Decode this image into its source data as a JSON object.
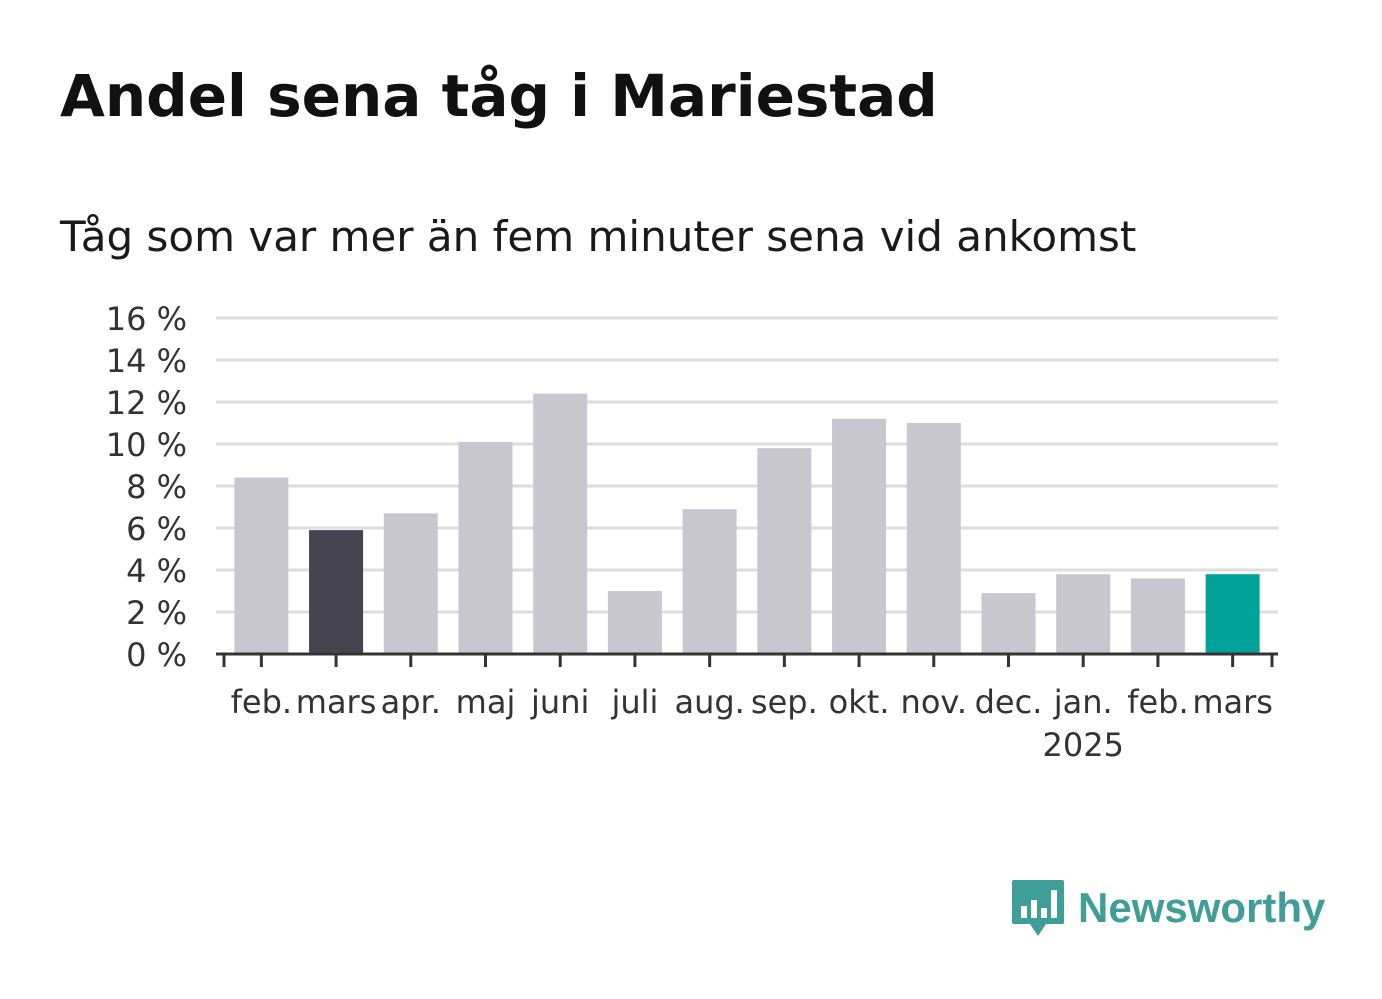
{
  "title": "Andel sena tåg i Mariestad",
  "subtitle": "Tåg som var mer än fem minuter sena vid ankomst",
  "brand": {
    "name": "Newsworthy",
    "color": "#3f9e98",
    "icon": "chart-bubble-icon"
  },
  "chart_data": {
    "type": "bar",
    "categories": [
      "feb.",
      "mars",
      "apr.",
      "maj",
      "juni",
      "juli",
      "aug.",
      "sep.",
      "okt.",
      "nov.",
      "dec.",
      "jan.",
      "feb.",
      "mars"
    ],
    "year_labels": [
      "",
      "",
      "",
      "",
      "",
      "",
      "",
      "",
      "",
      "",
      "",
      "2025",
      "",
      ""
    ],
    "values": [
      8.4,
      5.9,
      6.7,
      10.1,
      12.4,
      3.0,
      6.9,
      9.8,
      11.2,
      11.0,
      2.9,
      3.8,
      3.6,
      3.8
    ],
    "highlight": {
      "1": "#45434f",
      "13": "#00a29a"
    },
    "bar_color": "#c8c7d0",
    "yticks": [
      "0 %",
      "2 %",
      "4 %",
      "6 %",
      "8 %",
      "10 %",
      "12 %",
      "14 %",
      "16 %"
    ],
    "ylim": [
      0,
      16
    ],
    "grid": true,
    "xlabel": "",
    "ylabel": ""
  }
}
